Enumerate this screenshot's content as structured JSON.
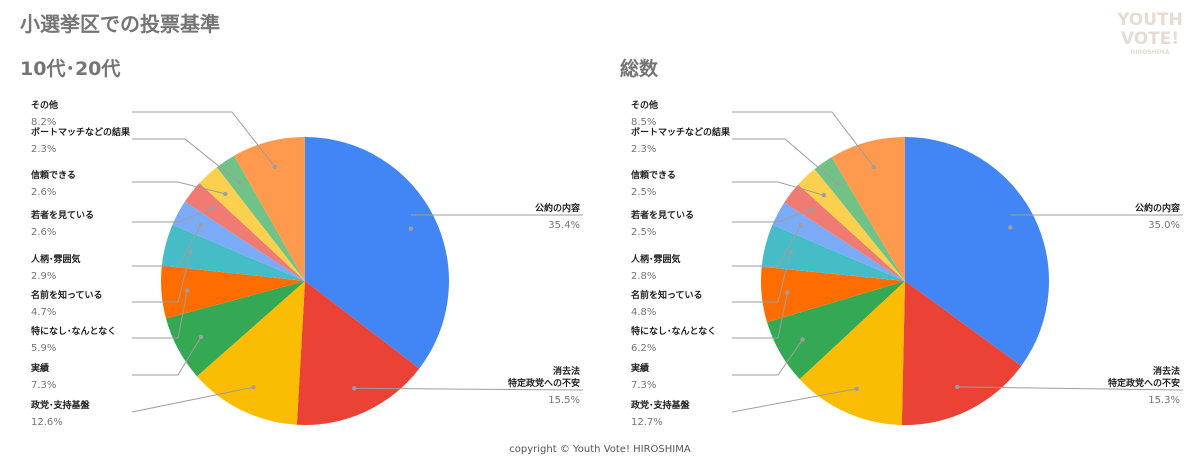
{
  "page": {
    "title": "小選挙区での投票基準",
    "copyright": "copyright © Youth Vote! HIROSHIMA",
    "logo": {
      "line1": "YOUTH",
      "line2": "VOTE!",
      "line3": "HIROSHIMA",
      "color": "#e6dcd3"
    }
  },
  "chart_data": [
    {
      "type": "pie",
      "title": "10代･20代",
      "slices": [
        {
          "label": "公約の内容",
          "value": 35.4,
          "display": "35.4%",
          "color": "#4285f4"
        },
        {
          "label": "消去法\n特定政党への不安",
          "value": 15.5,
          "display": "15.5%",
          "color": "#ea4335"
        },
        {
          "label": "政党･支持基盤",
          "value": 12.6,
          "display": "12.6%",
          "color": "#fbbc04"
        },
        {
          "label": "実績",
          "value": 7.3,
          "display": "7.3%",
          "color": "#34a853"
        },
        {
          "label": "特になし･なんとなく",
          "value": 5.9,
          "display": "5.9%",
          "color": "#ff6d01"
        },
        {
          "label": "名前を知っている",
          "value": 4.7,
          "display": "4.7%",
          "color": "#46bdc6"
        },
        {
          "label": "人柄･雰囲気",
          "value": 2.9,
          "display": "2.9%",
          "color": "#7baaf7"
        },
        {
          "label": "若者を見ている",
          "value": 2.6,
          "display": "2.6%",
          "color": "#f07b72"
        },
        {
          "label": "信頼できる",
          "value": 2.6,
          "display": "2.6%",
          "color": "#fcd04f"
        },
        {
          "label": "ボートマッチなどの結果",
          "value": 2.3,
          "display": "2.3%",
          "color": "#71c287"
        },
        {
          "label": "その他",
          "value": 8.2,
          "display": "8.2%",
          "color": "#ff994d"
        }
      ]
    },
    {
      "type": "pie",
      "title": "総数",
      "slices": [
        {
          "label": "公約の内容",
          "value": 35.0,
          "display": "35.0%",
          "color": "#4285f4"
        },
        {
          "label": "消去法\n特定政党への不安",
          "value": 15.3,
          "display": "15.3%",
          "color": "#ea4335"
        },
        {
          "label": "政党･支持基盤",
          "value": 12.7,
          "display": "12.7%",
          "color": "#fbbc04"
        },
        {
          "label": "実績",
          "value": 7.3,
          "display": "7.3%",
          "color": "#34a853"
        },
        {
          "label": "特になし･なんとなく",
          "value": 6.2,
          "display": "6.2%",
          "color": "#ff6d01"
        },
        {
          "label": "名前を知っている",
          "value": 4.8,
          "display": "4.8%",
          "color": "#46bdc6"
        },
        {
          "label": "人柄･雰囲気",
          "value": 2.8,
          "display": "2.8%",
          "color": "#7baaf7"
        },
        {
          "label": "若者を見ている",
          "value": 2.5,
          "display": "2.5%",
          "color": "#f07b72"
        },
        {
          "label": "信頼できる",
          "value": 2.5,
          "display": "2.5%",
          "color": "#fcd04f"
        },
        {
          "label": "ボートマッチなどの結果",
          "value": 2.3,
          "display": "2.3%",
          "color": "#71c287"
        },
        {
          "label": "その他",
          "value": 8.5,
          "display": "8.5%",
          "color": "#ff994d"
        }
      ]
    }
  ]
}
